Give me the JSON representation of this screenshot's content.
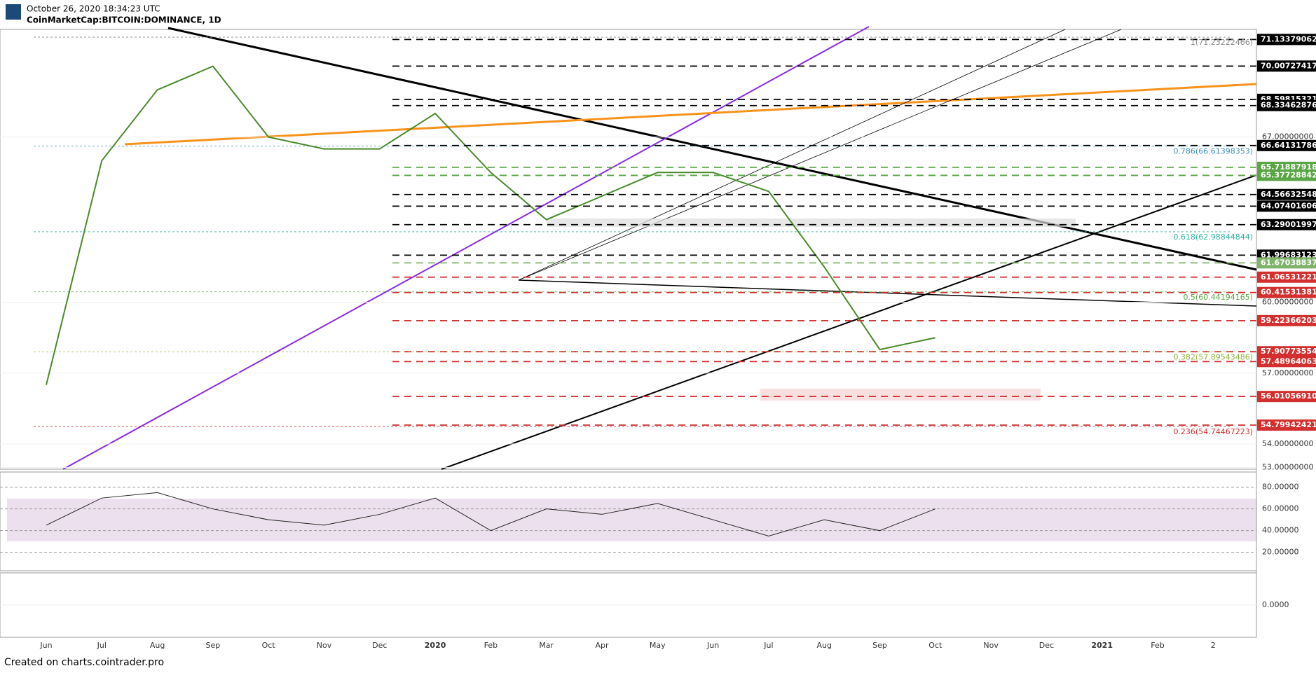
{
  "header": {
    "timestamp": "October 26, 2020 18:34:23 UTC",
    "symbol": "CoinMarketCap:BITCOIN:DOMINANCE, 1D"
  },
  "footer": "Created on charts.cointrader.pro",
  "chart_data": [
    {
      "type": "line",
      "color": "#4a8a2a",
      "categories": [
        "Jun",
        "Jul",
        "Aug",
        "Sep",
        "Oct",
        "Nov",
        "Dec",
        "2020",
        "Feb",
        "Mar",
        "Apr",
        "May",
        "Jun",
        "Jul",
        "Aug",
        "Sep",
        "Oct",
        "Nov",
        "Dec",
        "2021",
        "Feb",
        "2"
      ],
      "values": [
        56.5,
        66.0,
        69.0,
        70.0,
        67.0,
        66.5,
        66.5,
        68.0,
        65.5,
        63.5,
        64.5,
        65.5,
        65.5,
        64.7,
        61.5,
        58.0,
        58.5,
        null,
        null,
        null,
        null,
        null
      ],
      "ylim": [
        52.93,
        71.56
      ],
      "yticks": [
        {
          "value": 67,
          "label": "67.00000000"
        },
        {
          "value": 60,
          "label": "60.00000000"
        },
        {
          "value": 57,
          "label": "57.00000000"
        },
        {
          "value": 54,
          "label": "54.00000000"
        },
        {
          "value": 53,
          "label": "53.00000000"
        }
      ],
      "levels": [
        {
          "value": 71.13379062,
          "label": "71.13379062",
          "color": "#000000"
        },
        {
          "value": 70.00727417,
          "label": "70.00727417",
          "color": "#000000"
        },
        {
          "value": 68.59815321,
          "label": "68.59815321",
          "color": "#000000"
        },
        {
          "value": 68.33462876,
          "label": "68.33462876",
          "color": "#000000"
        },
        {
          "value": 66.64131786,
          "label": "66.64131786",
          "color": "#000000"
        },
        {
          "value": 65.71887918,
          "label": "65.71887918",
          "color": "#5aa545"
        },
        {
          "value": 65.37728842,
          "label": "65.37728842",
          "color": "#5aa545"
        },
        {
          "value": 64.56632548,
          "label": "64.56632548",
          "color": "#000000"
        },
        {
          "value": 64.07401606,
          "label": "64.07401606",
          "color": "#000000"
        },
        {
          "value": 63.29001997,
          "label": "63.29001997",
          "color": "#000000"
        },
        {
          "value": 61.99683123,
          "label": "61.99683123",
          "color": "#000000"
        },
        {
          "value": 61.67038837,
          "label": "61.67038837",
          "color": "#7fb36a"
        },
        {
          "value": 61.06531221,
          "label": "61.06531221",
          "color": "#d32f2f"
        },
        {
          "value": 60.41531381,
          "label": "60.41531381",
          "color": "#d32f2f"
        },
        {
          "value": 59.22366203,
          "label": "59.22366203",
          "color": "#d32f2f"
        },
        {
          "value": 57.90773554,
          "label": "57.90773554",
          "color": "#d32f2f"
        },
        {
          "value": 57.48964063,
          "label": "57.48964063",
          "color": "#d32f2f"
        },
        {
          "value": 56.0105691,
          "label": "56.01056910",
          "color": "#d32f2f"
        },
        {
          "value": 54.79942421,
          "label": "54.79942421",
          "color": "#d32f2f"
        }
      ],
      "fibs": [
        {
          "value": 71.23222466,
          "label": "1(71.23222466)",
          "color": "#888888"
        },
        {
          "value": 66.61398353,
          "label": "0.786(66.61398353)",
          "color": "#3d8fb8"
        },
        {
          "value": 62.98844844,
          "label": "0.618(62.98844844)",
          "color": "#2bb3a0"
        },
        {
          "value": 60.44194165,
          "label": "0.5(60.44194165)",
          "color": "#5aa545"
        },
        {
          "value": 57.89543486,
          "label": "0.382(57.89543486)",
          "color": "#8db33a"
        },
        {
          "value": 54.74467223,
          "label": "0.236(54.74467223)",
          "color": "#d32f2f"
        }
      ]
    },
    {
      "type": "line",
      "color": "#222222",
      "values": [
        45,
        70,
        75,
        60,
        50,
        45,
        55,
        70,
        40,
        60,
        55,
        65,
        50,
        35,
        50,
        40,
        60,
        null,
        null,
        null,
        null,
        null
      ],
      "ylim": [
        3,
        94
      ],
      "yticks": [
        {
          "value": 80,
          "label": "80.00000"
        },
        {
          "value": 60,
          "label": "60.00000"
        },
        {
          "value": 40,
          "label": "40.00000"
        },
        {
          "value": 20,
          "label": "20.00000"
        }
      ]
    },
    {
      "type": "oscillator",
      "ylim": [
        -1,
        1
      ],
      "yticks": [
        {
          "value": 0,
          "label": "0.0000"
        }
      ]
    }
  ]
}
